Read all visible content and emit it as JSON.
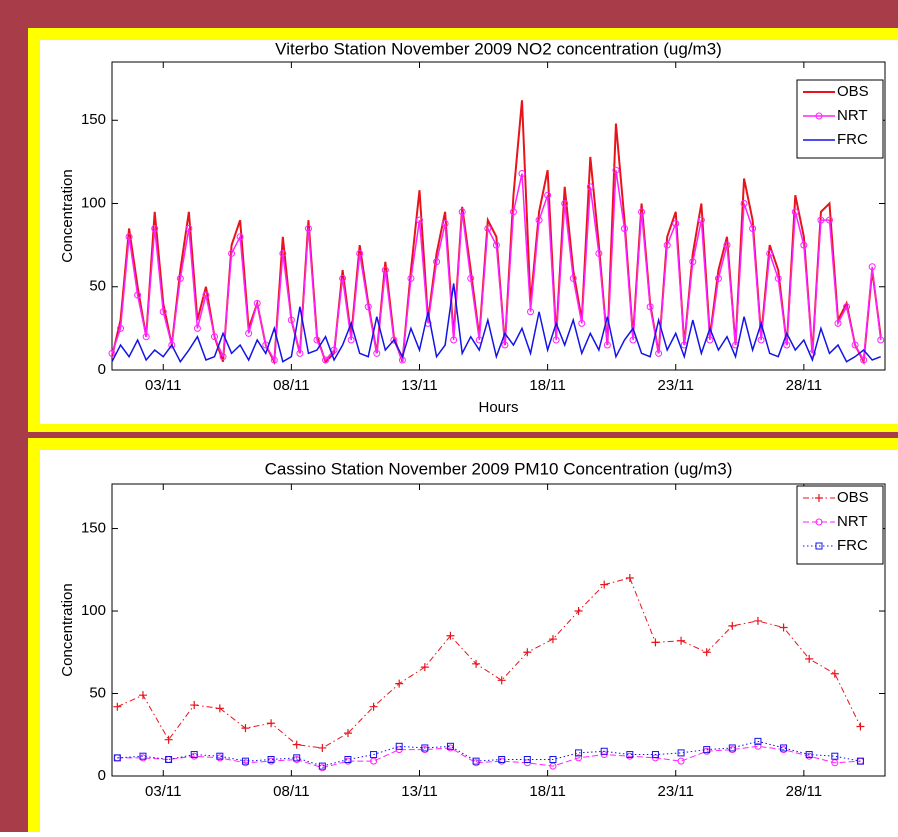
{
  "chart_data": [
    {
      "type": "line",
      "title": "Viterbo Station November 2009 NO2 concentration (ug/m3)",
      "x_label": "Hours",
      "y_label": "Concentration",
      "xlim": [
        0,
        724
      ],
      "ylim": [
        0,
        185
      ],
      "xticks": [
        {
          "value": 48,
          "label": "03/11"
        },
        {
          "value": 168,
          "label": "08/11"
        },
        {
          "value": 288,
          "label": "13/11"
        },
        {
          "value": 408,
          "label": "18/11"
        },
        {
          "value": 528,
          "label": "23/11"
        },
        {
          "value": 648,
          "label": "28/11"
        }
      ],
      "yticks": [
        0,
        50,
        100,
        150
      ],
      "legend": "top-right",
      "x": [
        0,
        8,
        16,
        24,
        32,
        40,
        48,
        56,
        64,
        72,
        80,
        88,
        96,
        104,
        112,
        120,
        128,
        136,
        144,
        152,
        160,
        168,
        176,
        184,
        192,
        200,
        208,
        216,
        224,
        232,
        240,
        248,
        256,
        264,
        272,
        280,
        288,
        296,
        304,
        312,
        320,
        328,
        336,
        344,
        352,
        360,
        368,
        376,
        384,
        392,
        400,
        408,
        416,
        424,
        432,
        440,
        448,
        456,
        464,
        472,
        480,
        488,
        496,
        504,
        512,
        520,
        528,
        536,
        544,
        552,
        560,
        568,
        576,
        584,
        592,
        600,
        608,
        616,
        624,
        632,
        640,
        648,
        656,
        664,
        672,
        680,
        688,
        696,
        704,
        712,
        720
      ],
      "series": [
        {
          "name": "OBS",
          "color": "#e8141c",
          "dash": "solid",
          "marker": "none",
          "width": 2,
          "values": [
            8,
            30,
            85,
            50,
            20,
            95,
            40,
            15,
            60,
            95,
            30,
            50,
            20,
            5,
            75,
            90,
            25,
            40,
            15,
            5,
            80,
            30,
            10,
            90,
            20,
            5,
            10,
            60,
            20,
            75,
            40,
            10,
            65,
            20,
            5,
            60,
            108,
            30,
            70,
            95,
            20,
            98,
            60,
            20,
            90,
            80,
            15,
            105,
            162,
            40,
            95,
            120,
            20,
            110,
            60,
            30,
            128,
            75,
            15,
            148,
            90,
            20,
            100,
            40,
            10,
            80,
            95,
            15,
            70,
            100,
            20,
            60,
            80,
            15,
            115,
            90,
            20,
            75,
            60,
            15,
            105,
            80,
            10,
            95,
            100,
            30,
            40,
            15,
            5,
            60,
            20
          ]
        },
        {
          "name": "NRT",
          "color": "#ff22ff",
          "dash": "solid",
          "marker": "circle",
          "width": 1.5,
          "values": [
            10,
            25,
            80,
            45,
            20,
            85,
            35,
            15,
            55,
            85,
            25,
            45,
            20,
            8,
            70,
            80,
            22,
            40,
            15,
            6,
            70,
            30,
            10,
            85,
            18,
            6,
            12,
            55,
            18,
            70,
            38,
            10,
            60,
            18,
            6,
            55,
            90,
            28,
            65,
            88,
            18,
            95,
            55,
            18,
            85,
            75,
            15,
            95,
            118,
            35,
            90,
            105,
            18,
            100,
            55,
            28,
            110,
            70,
            15,
            120,
            85,
            18,
            95,
            38,
            10,
            75,
            88,
            15,
            65,
            90,
            18,
            55,
            75,
            15,
            100,
            85,
            18,
            70,
            55,
            15,
            95,
            75,
            10,
            90,
            90,
            28,
            38,
            15,
            6,
            62,
            18
          ]
        },
        {
          "name": "FRC",
          "color": "#1414e6",
          "dash": "solid",
          "marker": "none",
          "width": 1.5,
          "values": [
            5,
            15,
            8,
            18,
            6,
            12,
            8,
            15,
            5,
            12,
            20,
            6,
            8,
            22,
            10,
            15,
            6,
            18,
            10,
            25,
            5,
            8,
            38,
            10,
            12,
            20,
            6,
            15,
            28,
            10,
            8,
            32,
            12,
            18,
            8,
            25,
            12,
            35,
            8,
            15,
            52,
            10,
            20,
            12,
            30,
            8,
            22,
            15,
            25,
            10,
            35,
            12,
            28,
            15,
            30,
            10,
            22,
            12,
            32,
            8,
            18,
            25,
            10,
            8,
            30,
            12,
            22,
            8,
            30,
            10,
            25,
            12,
            20,
            8,
            32,
            12,
            28,
            10,
            8,
            22,
            12,
            18,
            6,
            25,
            10,
            15,
            5,
            8,
            12,
            6,
            8
          ]
        }
      ]
    },
    {
      "type": "line",
      "title": "Cassino Station November 2009 PM10 Concentration (ug/m3)",
      "y_label": "Concentration",
      "xlim": [
        0,
        724
      ],
      "ylim": [
        0,
        177
      ],
      "xticks": [
        {
          "value": 48,
          "label": "03/11"
        },
        {
          "value": 168,
          "label": "08/11"
        },
        {
          "value": 288,
          "label": "13/11"
        },
        {
          "value": 408,
          "label": "18/11"
        },
        {
          "value": 528,
          "label": "23/11"
        },
        {
          "value": 648,
          "label": "28/11"
        }
      ],
      "yticks": [
        0,
        50,
        100,
        150
      ],
      "legend": "top-right",
      "x": [
        5,
        29,
        53,
        77,
        101,
        125,
        149,
        173,
        197,
        221,
        245,
        269,
        293,
        317,
        341,
        365,
        389,
        413,
        437,
        461,
        485,
        509,
        533,
        557,
        581,
        605,
        629,
        653,
        677,
        701
      ],
      "series": [
        {
          "name": "OBS",
          "color": "#e8141c",
          "dash": "dashdot",
          "marker": "plus",
          "width": 1,
          "values": [
            42,
            49,
            22,
            43,
            41,
            29,
            32,
            19,
            17,
            26,
            42,
            56,
            66,
            85,
            68,
            58,
            75,
            83,
            100,
            116,
            120,
            81,
            82,
            75,
            91,
            94,
            90,
            71,
            62,
            30
          ]
        },
        {
          "name": "NRT",
          "color": "#ff22ff",
          "dash": "dashed",
          "marker": "circle",
          "width": 1,
          "values": [
            11,
            11,
            10,
            12,
            11,
            8,
            9,
            10,
            5,
            9,
            9,
            16,
            16,
            17,
            8,
            9,
            8,
            6,
            11,
            13,
            12,
            11,
            9,
            15,
            16,
            18,
            16,
            12,
            8,
            9
          ]
        },
        {
          "name": "FRC",
          "color": "#1414e6",
          "dash": "dotted",
          "marker": "square",
          "width": 1,
          "values": [
            11,
            12,
            10,
            13,
            12,
            9,
            10,
            11,
            6,
            10,
            13,
            18,
            17,
            18,
            9,
            10,
            10,
            10,
            14,
            15,
            13,
            13,
            14,
            16,
            17,
            21,
            17,
            13,
            12,
            9
          ]
        }
      ]
    }
  ]
}
